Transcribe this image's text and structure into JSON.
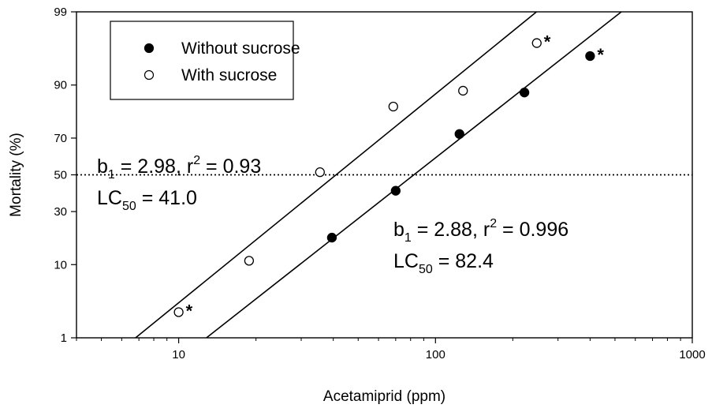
{
  "chart_data": {
    "type": "scatter",
    "xlabel": "Acetamiprid (ppm)",
    "ylabel": "Mortality (%)",
    "x_scale": "log",
    "y_scale": "probit",
    "xlim": [
      4,
      1000
    ],
    "ylim": [
      1,
      99
    ],
    "x_ticks": [
      10,
      100,
      1000
    ],
    "x_tick_labels": [
      "10",
      "100",
      "1000"
    ],
    "y_ticks": [
      1,
      10,
      30,
      50,
      70,
      90,
      99
    ],
    "y_tick_labels": [
      "1",
      "10",
      "30",
      "50",
      "70",
      "90",
      "99"
    ],
    "grid": false,
    "legend_position": "top-left",
    "reference_line": {
      "y": 50,
      "style": "dotted"
    },
    "series": [
      {
        "name": "Without sucrose",
        "marker": "filled-circle",
        "color": "#000000",
        "points": [
          {
            "x": 39.5,
            "y": 18.5,
            "flag": ""
          },
          {
            "x": 70,
            "y": 41,
            "flag": ""
          },
          {
            "x": 124,
            "y": 72,
            "flag": ""
          },
          {
            "x": 222,
            "y": 88,
            "flag": ""
          },
          {
            "x": 400,
            "y": 95.5,
            "flag": "*"
          }
        ],
        "fit": {
          "slope": 2.88,
          "lc50": 82.4,
          "r2": 0.996
        }
      },
      {
        "name": "With sucrose",
        "marker": "open-circle",
        "color": "#000000",
        "points": [
          {
            "x": 10,
            "y": 2.5,
            "flag": "*"
          },
          {
            "x": 18.8,
            "y": 11,
            "flag": ""
          },
          {
            "x": 35.5,
            "y": 51.5,
            "flag": ""
          },
          {
            "x": 68.5,
            "y": 83.5,
            "flag": ""
          },
          {
            "x": 128,
            "y": 88.5,
            "flag": ""
          },
          {
            "x": 248,
            "y": 97,
            "flag": "*"
          }
        ],
        "fit": {
          "slope": 2.98,
          "lc50": 41.0,
          "r2": 0.93
        }
      }
    ],
    "annotations": [
      {
        "id": "with",
        "line1": {
          "sym": "b",
          "sub": "1",
          "mid": " = 2.98, r",
          "sup": "2",
          "tail": " = 0.93"
        },
        "line2": {
          "sym": "LC",
          "sub": "50",
          "tail": " = 41.0"
        }
      },
      {
        "id": "without",
        "line1": {
          "sym": "b",
          "sub": "1",
          "mid": " = 2.88, r",
          "sup": "2",
          "tail": " = 0.996"
        },
        "line2": {
          "sym": "LC",
          "sub": "50",
          "tail": " = 82.4"
        }
      }
    ]
  }
}
